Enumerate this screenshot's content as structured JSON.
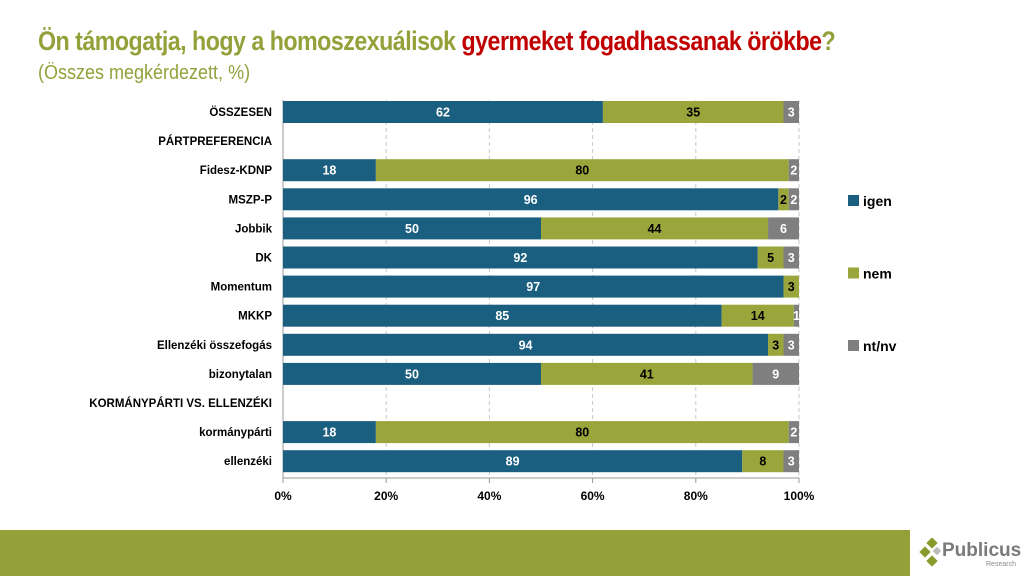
{
  "title": {
    "part1": "Ön támogatja, hogy a homoszexuálisok ",
    "part2": "gyermeket fogadhassanak örökbe",
    "part3": "?"
  },
  "subtitle": "(Összes megkérdezett, %)",
  "colors": {
    "igen": "#1b5f80",
    "nem": "#9aa63b",
    "ntnv": "#7f7f7f",
    "accent": "#94a13a",
    "red": "#c00000"
  },
  "logo": {
    "name": "Publicus",
    "sub": "Research"
  },
  "chart_data": {
    "type": "bar",
    "stacked": true,
    "orientation": "horizontal",
    "xlim": [
      0,
      100
    ],
    "xticks": [
      "0%",
      "20%",
      "40%",
      "60%",
      "80%",
      "100%"
    ],
    "legend": {
      "placement": "right",
      "entries": [
        "igen",
        "nem",
        "nt/nv"
      ]
    },
    "series_names": [
      "igen",
      "nem",
      "nt/nv"
    ],
    "rows": [
      {
        "label": "ÖSSZESEN",
        "values": [
          62,
          35,
          3
        ]
      },
      {
        "label": "PÁRTPREFERENCIA",
        "values": null
      },
      {
        "label": "Fidesz-KDNP",
        "values": [
          18,
          80,
          2
        ]
      },
      {
        "label": "MSZP-P",
        "values": [
          96,
          2,
          2
        ]
      },
      {
        "label": "Jobbik",
        "values": [
          50,
          44,
          6
        ]
      },
      {
        "label": "DK",
        "values": [
          92,
          5,
          3
        ]
      },
      {
        "label": "Momentum",
        "values": [
          97,
          3,
          0
        ]
      },
      {
        "label": "MKKP",
        "values": [
          85,
          14,
          1
        ]
      },
      {
        "label": "Ellenzéki összefogás",
        "values": [
          94,
          3,
          3
        ]
      },
      {
        "label": "bizonytalan",
        "values": [
          50,
          41,
          9
        ]
      },
      {
        "label": "KORMÁNYPÁRTI VS. ELLENZÉKI",
        "values": null
      },
      {
        "label": "kormánypárti",
        "values": [
          18,
          80,
          2
        ]
      },
      {
        "label": "ellenzéki",
        "values": [
          89,
          8,
          3
        ]
      }
    ]
  }
}
